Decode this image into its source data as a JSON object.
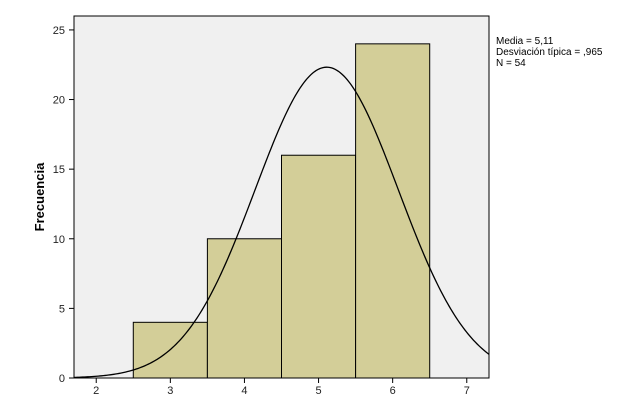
{
  "chart_data": {
    "type": "bar",
    "subtype": "histogram",
    "title": "",
    "xlabel": "",
    "ylabel": "Frecuencia",
    "bins": [
      {
        "from": 2.5,
        "to": 3.5,
        "value": 4
      },
      {
        "from": 3.5,
        "to": 4.5,
        "value": 10
      },
      {
        "from": 4.5,
        "to": 5.5,
        "value": 16
      },
      {
        "from": 5.5,
        "to": 6.5,
        "value": 24
      }
    ],
    "xlim": [
      1.7,
      7.3
    ],
    "ylim": [
      0,
      26
    ],
    "xticks": [
      2,
      3,
      4,
      5,
      6,
      7
    ],
    "yticks": [
      0,
      5,
      10,
      15,
      20,
      25
    ],
    "xtick_labels": [
      "2",
      "3",
      "4",
      "5",
      "6",
      "7"
    ],
    "ytick_labels": [
      "0",
      "5",
      "10",
      "15",
      "20",
      "25"
    ],
    "normal_curve": {
      "mean": 5.11,
      "sd": 0.965,
      "n": 54,
      "bin_width": 1
    },
    "stats": [
      "Media = 5,11",
      "Desviación típica = ,965",
      "N = 54"
    ],
    "legend_position": "top-right",
    "colors": {
      "plot_bg": "#f0f0f0",
      "bar_fill": "#d3ce98",
      "bar_stroke": "#000000",
      "curve": "#000000"
    }
  }
}
